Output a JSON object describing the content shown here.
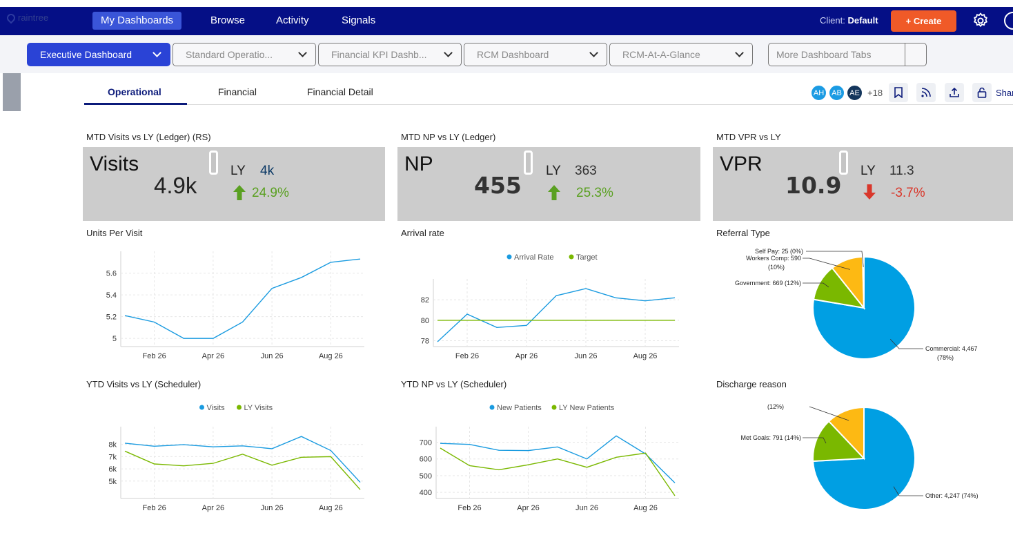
{
  "app": {
    "logo_text": "raintree"
  },
  "topnav": {
    "items": [
      {
        "label": "My Dashboards"
      },
      {
        "label": "Browse"
      },
      {
        "label": "Activity"
      },
      {
        "label": "Signals"
      }
    ],
    "client_label": "Client:",
    "client_value": "Default",
    "create_label": "+ Create",
    "accent": "#050f86",
    "create_color": "#f05a28"
  },
  "dashboard_tabs": {
    "items": [
      {
        "label": "Executive Dashboard"
      },
      {
        "label": "Standard Operatio..."
      },
      {
        "label": "Financial KPI Dashb..."
      },
      {
        "label": "RCM Dashboard"
      },
      {
        "label": "RCM-At-A-Glance"
      }
    ],
    "more_label": "More Dashboard Tabs"
  },
  "subtabs": [
    {
      "label": "Operational"
    },
    {
      "label": "Financial"
    },
    {
      "label": "Financial Detail"
    }
  ],
  "collaborators": {
    "avatars": [
      {
        "initials": "AH",
        "color": "#1b9be3"
      },
      {
        "initials": "AB",
        "color": "#1b9be3"
      },
      {
        "initials": "AE",
        "color": "#14365c"
      }
    ],
    "extra": "+18",
    "share_label": "Shar"
  },
  "kpis": [
    {
      "title": "MTD Visits vs LY (Ledger) (RS)",
      "name": "Visits",
      "value": "4.9k",
      "ly_label": "LY",
      "ly_value": "4k",
      "change": "24.9%",
      "direction": "up"
    },
    {
      "title": "MTD NP vs LY (Ledger)",
      "name": "NP",
      "value": "455",
      "ly_label": "LY",
      "ly_value": "363",
      "change": "25.3%",
      "direction": "up"
    },
    {
      "title": "MTD VPR vs LY",
      "name": "VPR",
      "value": "10.9",
      "ly_label": "LY",
      "ly_value": "11.3",
      "change": "-3.7%",
      "direction": "down"
    }
  ],
  "widget_titles": {
    "units": "Units Per Visit",
    "arrival": "Arrival rate",
    "referral": "Referral Type",
    "ytd_visits": "YTD Visits vs LY (Scheduler)",
    "ytd_np": "YTD NP vs LY (Scheduler)",
    "discharge": "Discharge reason"
  },
  "chart_data": [
    {
      "type": "line",
      "title": "Units Per Visit",
      "x_ticks": [
        "Feb 26",
        "Apr 26",
        "Jun 26",
        "Aug 26"
      ],
      "y_ticks": [
        "5",
        "5.2",
        "5.4",
        "5.6"
      ],
      "ylim": [
        4.95,
        5.75
      ],
      "series": [
        {
          "values": [
            5.21,
            5.15,
            5.0,
            5.0,
            5.15,
            5.46,
            5.56,
            5.7,
            5.73
          ],
          "color": "#1a9be0"
        }
      ]
    },
    {
      "type": "line",
      "title": "Arrival rate",
      "legend": [
        "Arrival Rate",
        "Target"
      ],
      "x_ticks": [
        "Feb 26",
        "Apr 26",
        "Jun 26",
        "Aug 26"
      ],
      "y_ticks": [
        "78",
        "80",
        "82"
      ],
      "ylim": [
        77.7,
        83.5
      ],
      "series": [
        {
          "name": "Arrival Rate",
          "values": [
            77.9,
            80.6,
            79.3,
            79.5,
            82.4,
            83.1,
            82.2,
            81.9,
            82.2
          ],
          "color": "#1a9be0"
        },
        {
          "name": "Target",
          "values": [
            80,
            80,
            80,
            80,
            80,
            80,
            80,
            80,
            80
          ],
          "color": "#7ab800"
        }
      ]
    },
    {
      "type": "pie",
      "title": "Referral Type",
      "slices": [
        {
          "label": "Commercial: 4,467 (78%)",
          "value": 4467,
          "pct": 78,
          "color": "#009fe3"
        },
        {
          "label": "Government: 669 (12%)",
          "value": 669,
          "pct": 12,
          "color": "#7ab800"
        },
        {
          "label": "Workers Comp: 590 (10%)",
          "value": 590,
          "pct": 10,
          "color": "#fdb913"
        },
        {
          "label": "Self Pay: 25 (0%)",
          "value": 25,
          "pct": 0,
          "color": "#0a2a6b"
        }
      ]
    },
    {
      "type": "line",
      "title": "YTD Visits vs LY (Scheduler)",
      "legend": [
        "Visits",
        "LY Visits"
      ],
      "x_ticks": [
        "Feb 26",
        "Apr 26",
        "Jun 26",
        "Aug 26"
      ],
      "y_ticks": [
        "5k",
        "6k",
        "7k",
        "8k"
      ],
      "ylim": [
        3800,
        9000
      ],
      "series": [
        {
          "name": "Visits",
          "values": [
            8100,
            7850,
            7980,
            7800,
            7880,
            7650,
            8650,
            7500,
            4900
          ],
          "color": "#1a9be0"
        },
        {
          "name": "LY Visits",
          "values": [
            7450,
            6400,
            6250,
            6450,
            7200,
            6300,
            6950,
            7000,
            4300
          ],
          "color": "#7ab800"
        }
      ]
    },
    {
      "type": "line",
      "title": "YTD NP vs LY (Scheduler)",
      "legend": [
        "New Patients",
        "LY New Patients"
      ],
      "x_ticks": [
        "Feb 26",
        "Apr 26",
        "Jun 26",
        "Aug 26"
      ],
      "y_ticks": [
        "400",
        "500",
        "600",
        "700"
      ],
      "ylim": [
        380,
        760
      ],
      "series": [
        {
          "name": "New Patients",
          "values": [
            693,
            687,
            652,
            650,
            672,
            600,
            738,
            630,
            457
          ],
          "color": "#1a9be0"
        },
        {
          "name": "LY New Patients",
          "values": [
            665,
            560,
            535,
            565,
            600,
            550,
            610,
            635,
            380
          ],
          "color": "#7ab800"
        }
      ]
    },
    {
      "type": "pie",
      "title": "Discharge reason",
      "slices": [
        {
          "label": "Other: 4,247 (74%)",
          "value": 4247,
          "pct": 74,
          "color": "#009fe3"
        },
        {
          "label": "Met Goals: 791 (14%)",
          "value": 791,
          "pct": 14,
          "color": "#7ab800"
        },
        {
          "label": "(12%)",
          "value": 690,
          "pct": 12,
          "color": "#fdb913"
        }
      ]
    }
  ]
}
